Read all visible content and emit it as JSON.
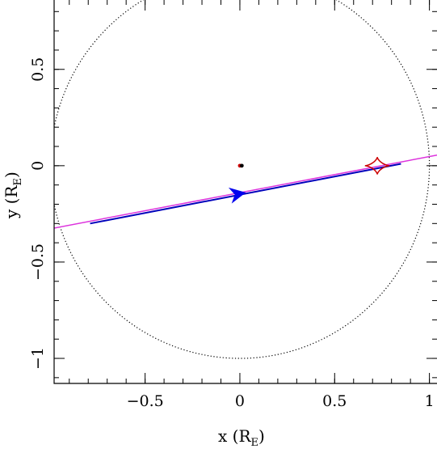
{
  "chart_data": {
    "type": "scatter",
    "xlabel": {
      "main": "x (R",
      "sub": "E",
      "close": ")"
    },
    "ylabel": {
      "main": "y (R",
      "sub": "E",
      "close": ")"
    },
    "xlim": [
      -0.98,
      1.04
    ],
    "ylim": [
      -1.13,
      0.86
    ],
    "x_major_ticks": [
      -0.5,
      0,
      0.5,
      1
    ],
    "x_tick_labels": [
      "−0.5",
      "0",
      "0.5",
      "1"
    ],
    "x_minor_step": 0.1,
    "y_major_ticks": [
      -1,
      -0.5,
      0,
      0.5
    ],
    "y_tick_labels": [
      "−1",
      "−0.5",
      "0",
      "0.5"
    ],
    "y_minor_step": 0.1,
    "grid": false,
    "einstein_ring": {
      "center": [
        0,
        0
      ],
      "radius": 1.0,
      "style": "dotted",
      "color": "#000000"
    },
    "lens_points": [
      {
        "x": 0.0,
        "y": 0.0,
        "color": "#cc0000"
      },
      {
        "x": 0.01,
        "y": 0.0,
        "color": "#000000"
      }
    ],
    "source_trajectory": {
      "x": [
        -1.04,
        1.04
      ],
      "y": [
        -0.335,
        0.055
      ],
      "color": "#dd33dd"
    },
    "observed_trajectory": {
      "x": [
        -0.79,
        0.85
      ],
      "y": [
        -0.3,
        0.01
      ],
      "color": "#0000bb",
      "arrow_at": {
        "x": -0.01,
        "y": -0.147
      }
    },
    "caustic": {
      "center": [
        0.725,
        0.0
      ],
      "half_width": 0.065,
      "half_height": 0.045,
      "color": "#cc0000"
    }
  }
}
